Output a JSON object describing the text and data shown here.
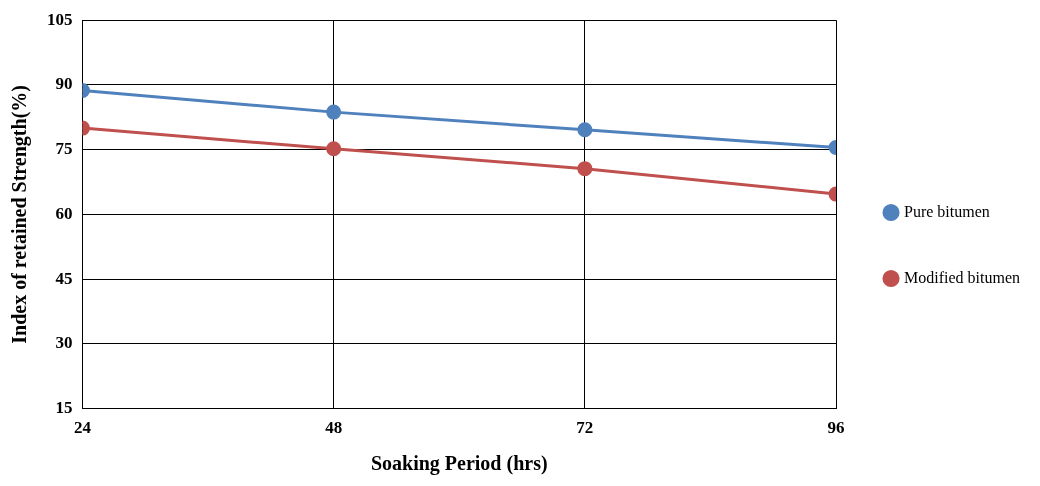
{
  "chart_data": {
    "type": "line",
    "xlabel": "Soaking Period (hrs)",
    "ylabel": "Index of retained Strength(%)",
    "x": [
      24,
      48,
      72,
      96
    ],
    "xlim": [
      24,
      96
    ],
    "xticks": [
      24,
      48,
      72,
      96
    ],
    "ylim": [
      15,
      105
    ],
    "yticks": [
      15,
      30,
      45,
      60,
      75,
      90,
      105
    ],
    "series": [
      {
        "name": "Pure bitumen",
        "color": "#4f81bd",
        "values": [
          88.7,
          83.7,
          79.6,
          75.5
        ]
      },
      {
        "name": "Modified bitumen",
        "color": "#c0504d",
        "values": [
          80.0,
          75.2,
          70.6,
          64.7
        ]
      }
    ],
    "grid": true,
    "legend": "right",
    "marker": "circle",
    "line_style": "solid"
  }
}
